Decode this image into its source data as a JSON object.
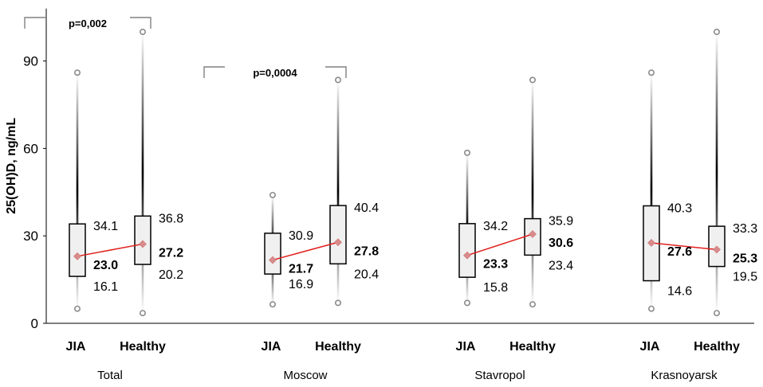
{
  "chart_data": {
    "type": "box",
    "ylabel": "25(OH)D, ng/mL",
    "ylim": [
      0,
      108
    ],
    "yticks": [
      0,
      30,
      60,
      90
    ],
    "colors": {
      "box_fill": "#f0f0f0",
      "box_stroke": "#000000",
      "mean_line": "#e0201c",
      "mean_marker": "#d98b8b",
      "outlier": "#8c8c8c",
      "bracket": "#808080"
    },
    "groups": [
      {
        "name": "Total",
        "boxes": [
          {
            "category": "JIA",
            "q1": 16.1,
            "q3": 34.1,
            "median": 23.0,
            "min": 5.0,
            "max": 86.0,
            "q1_label": "16.1",
            "q3_label": "34.1",
            "median_label": "23.0"
          },
          {
            "category": "Healthy",
            "q1": 20.2,
            "q3": 36.8,
            "median": 27.2,
            "min": 3.5,
            "max": 100.0,
            "q1_label": "20.2",
            "q3_label": "36.8",
            "median_label": "27.2"
          }
        ],
        "pvalue": "p=0,002"
      },
      {
        "name": "Moscow",
        "boxes": [
          {
            "category": "JIA",
            "q1": 16.9,
            "q3": 30.9,
            "median": 21.7,
            "min": 6.5,
            "max": 44.0,
            "q1_label": "16.9",
            "q3_label": "30.9",
            "median_label": "21.7"
          },
          {
            "category": "Healthy",
            "q1": 20.4,
            "q3": 40.4,
            "median": 27.8,
            "min": 7.0,
            "max": 83.5,
            "q1_label": "20.4",
            "q3_label": "40.4",
            "median_label": "27.8"
          }
        ],
        "pvalue": "p=0,0004"
      },
      {
        "name": "Stavropol",
        "boxes": [
          {
            "category": "JIA",
            "q1": 15.8,
            "q3": 34.2,
            "median": 23.3,
            "min": 7.0,
            "max": 58.5,
            "q1_label": "15.8",
            "q3_label": "34.2",
            "median_label": "23.3"
          },
          {
            "category": "Healthy",
            "q1": 23.4,
            "q3": 35.9,
            "median": 30.6,
            "min": 6.5,
            "max": 83.5,
            "q1_label": "23.4",
            "q3_label": "35.9",
            "median_label": "30.6"
          }
        ],
        "pvalue": null
      },
      {
        "name": "Krasnoyarsk",
        "boxes": [
          {
            "category": "JIA",
            "q1": 14.6,
            "q3": 40.3,
            "median": 27.6,
            "min": 5.0,
            "max": 86.0,
            "q1_label": "14.6",
            "q3_label": "40.3",
            "median_label": "27.6"
          },
          {
            "category": "Healthy",
            "q1": 19.5,
            "q3": 33.3,
            "median": 25.3,
            "min": 3.5,
            "max": 100.0,
            "q1_label": "19.5",
            "q3_label": "33.3",
            "median_label": "25.3"
          }
        ],
        "pvalue": null
      }
    ]
  }
}
